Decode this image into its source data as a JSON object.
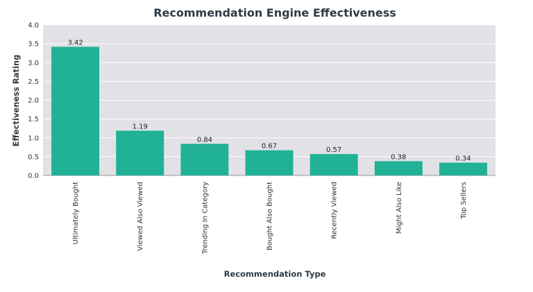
{
  "chart_data": {
    "type": "bar",
    "title": "Recommendation Engine Effectiveness",
    "xlabel": "Recommendation Type",
    "ylabel": "Effectiveness Rating",
    "categories": [
      "Ultimately Bought",
      "Viewed Also Viewed",
      "Trending In Category",
      "Bought Also Bought",
      "Recently Viewed",
      "Might Also Like",
      "Top Sellers"
    ],
    "values": [
      3.42,
      1.19,
      0.84,
      0.67,
      0.57,
      0.38,
      0.34
    ],
    "data_labels": [
      "3.42",
      "1.19",
      "0.84",
      "0.67",
      "0.57",
      "0.38",
      "0.34"
    ],
    "ylim": [
      0,
      4.0
    ],
    "yticks": [
      "0.0",
      "0.5",
      "1.0",
      "1.5",
      "2.0",
      "2.5",
      "3.0",
      "3.5",
      "4.0"
    ],
    "grid": true,
    "legend": "none",
    "colors": {
      "bar": "#20b196",
      "plot_background": "#e1e1e6",
      "gridline": "#ffffff"
    }
  }
}
